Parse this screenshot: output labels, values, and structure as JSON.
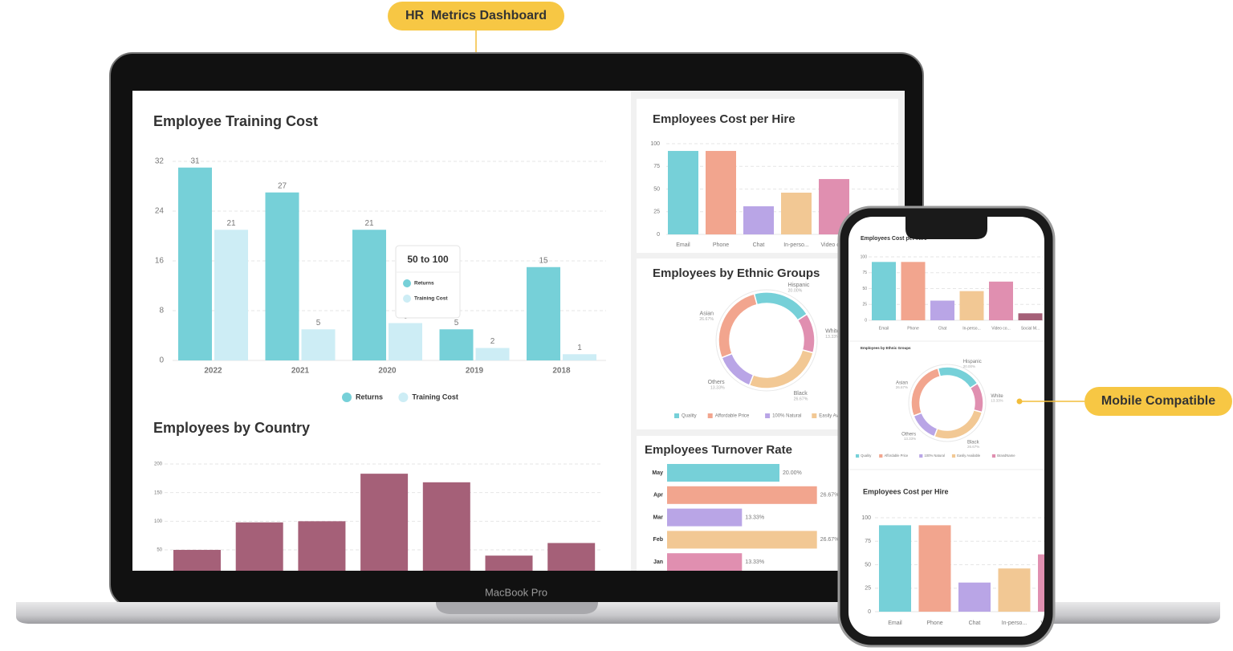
{
  "callouts": {
    "dashboard": "HR  Metrics Dashboard",
    "mobile": "Mobile Compatible"
  },
  "device_label": "MacBook Pro",
  "chart_data": [
    {
      "type": "bar",
      "title": "Employee Training Cost",
      "categories": [
        "2022",
        "2021",
        "2020",
        "2019",
        "2018"
      ],
      "series": [
        {
          "name": "Returns",
          "color": "#76d0d8",
          "values": [
            31,
            27,
            21,
            5,
            15
          ]
        },
        {
          "name": "Training Cost",
          "color": "#cdedf5",
          "values": [
            21,
            5,
            6,
            2,
            1
          ]
        }
      ],
      "ylim": [
        0,
        32
      ],
      "yticks": [
        0,
        8,
        16,
        24,
        32
      ],
      "grid": true,
      "legend": "bottom",
      "tooltip": {
        "title": "50 to 100"
      }
    },
    {
      "type": "bar",
      "title": "Employees by Country",
      "values": [
        50,
        98,
        100,
        183,
        168,
        40,
        62
      ],
      "color": "#a56078",
      "ylim": [
        0,
        200
      ],
      "yticks": [
        50,
        100,
        150,
        200
      ],
      "grid": true
    },
    {
      "type": "bar",
      "title": "Employees Cost per Hire",
      "categories": [
        "Email",
        "Phone",
        "Chat",
        "In-perso...",
        "Video co...",
        "Social M..."
      ],
      "values": [
        92,
        92,
        31,
        46,
        61,
        11
      ],
      "colors": [
        "#76d0d8",
        "#f2a58e",
        "#b9a5e6",
        "#f2c894",
        "#e08fb0",
        "#a56078"
      ],
      "ylim": [
        0,
        100
      ],
      "yticks": [
        0,
        25,
        50,
        75,
        100
      ],
      "grid": true
    },
    {
      "type": "pie",
      "donut": true,
      "title": "Employees by Ethnic Groups",
      "categories": [
        "Hispanic",
        "White",
        "Black",
        "Others",
        "Asian"
      ],
      "values": [
        20,
        13.33,
        26.67,
        13.33,
        26.67
      ],
      "value_labels": [
        "20.00%",
        "13.33%",
        "26.67%",
        "13.33%",
        "26.67%"
      ],
      "colors": [
        "#76d0d8",
        "#e08fb0",
        "#f2c894",
        "#b9a5e6",
        "#f2a58e"
      ],
      "legend": [
        {
          "name": "Quality",
          "color": "#76d0d8"
        },
        {
          "name": "Affordable Price",
          "color": "#f2a58e"
        },
        {
          "name": "100% Natural",
          "color": "#b9a5e6"
        },
        {
          "name": "Easily Available",
          "color": "#f2c894"
        },
        {
          "name": "BrandName",
          "color": "#e08fb0"
        }
      ]
    },
    {
      "type": "barh",
      "title": "Employees Turnover Rate",
      "categories": [
        "May",
        "Apr",
        "Mar",
        "Feb",
        "Jan"
      ],
      "values": [
        20,
        26.67,
        13.33,
        26.67,
        13.33
      ],
      "value_labels": [
        "20.00%",
        "26.67%",
        "13.33%",
        "26.67%",
        "13.33%"
      ],
      "colors": [
        "#76d0d8",
        "#f2a58e",
        "#b9a5e6",
        "#f2c894",
        "#e08fb0"
      ]
    }
  ]
}
